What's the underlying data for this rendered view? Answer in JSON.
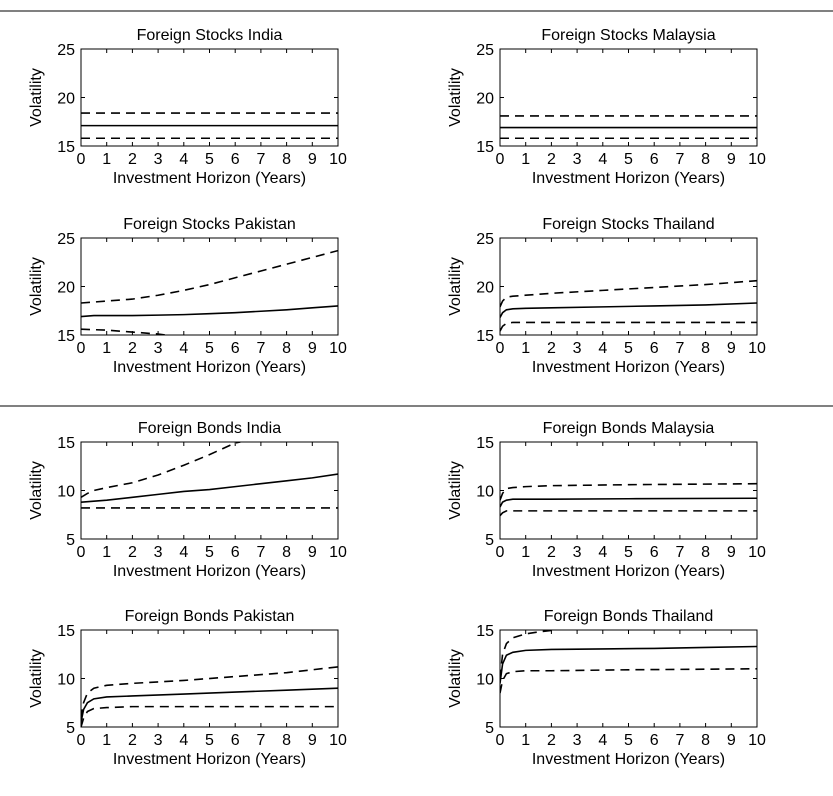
{
  "chart_data": [
    {
      "type": "line",
      "title": "Foreign Stocks India",
      "xlabel": "Investment Horizon (Years)",
      "ylabel": "Volatility",
      "xlim": [
        0,
        10
      ],
      "ylim": [
        15,
        25
      ],
      "xticks": [
        "0",
        "1",
        "2",
        "3",
        "4",
        "5",
        "6",
        "7",
        "8",
        "9",
        "10"
      ],
      "yticks": [
        "15",
        "20",
        "25"
      ],
      "series": [
        {
          "style": "solid",
          "x": [
            0,
            10
          ],
          "y": [
            17.1,
            17.1
          ]
        },
        {
          "style": "dashed",
          "x": [
            0,
            10
          ],
          "y": [
            18.4,
            18.4
          ]
        },
        {
          "style": "dashed",
          "x": [
            0,
            10
          ],
          "y": [
            15.8,
            15.8
          ]
        }
      ]
    },
    {
      "type": "line",
      "title": "Foreign Stocks Malaysia",
      "xlabel": "Investment Horizon (Years)",
      "ylabel": "Volatility",
      "xlim": [
        0,
        10
      ],
      "ylim": [
        15,
        25
      ],
      "xticks": [
        "0",
        "1",
        "2",
        "3",
        "4",
        "5",
        "6",
        "7",
        "8",
        "9",
        "10"
      ],
      "yticks": [
        "15",
        "20",
        "25"
      ],
      "series": [
        {
          "style": "solid",
          "x": [
            0,
            10
          ],
          "y": [
            16.9,
            16.9
          ]
        },
        {
          "style": "dashed",
          "x": [
            0,
            10
          ],
          "y": [
            18.1,
            18.1
          ]
        },
        {
          "style": "dashed",
          "x": [
            0,
            10
          ],
          "y": [
            15.8,
            15.8
          ]
        }
      ]
    },
    {
      "type": "line",
      "title": "Foreign Stocks Pakistan",
      "xlabel": "Investment Horizon (Years)",
      "ylabel": "Volatility",
      "xlim": [
        0,
        10
      ],
      "ylim": [
        15,
        25
      ],
      "xticks": [
        "0",
        "1",
        "2",
        "3",
        "4",
        "5",
        "6",
        "7",
        "8",
        "9",
        "10"
      ],
      "yticks": [
        "15",
        "20",
        "25"
      ],
      "series": [
        {
          "style": "solid",
          "x": [
            0,
            0.5,
            1,
            2,
            3,
            4,
            5,
            6,
            7,
            8,
            9,
            10
          ],
          "y": [
            16.9,
            17.0,
            17.0,
            17.0,
            17.05,
            17.1,
            17.2,
            17.3,
            17.45,
            17.6,
            17.8,
            18.0
          ]
        },
        {
          "style": "dashed",
          "x": [
            0,
            1,
            2,
            3,
            4,
            5,
            6,
            7,
            8,
            9,
            10
          ],
          "y": [
            18.3,
            18.5,
            18.7,
            19.1,
            19.6,
            20.2,
            20.9,
            21.6,
            22.3,
            23.0,
            23.7
          ]
        },
        {
          "style": "dashed",
          "x": [
            0,
            1,
            2,
            3,
            3.3
          ],
          "y": [
            15.6,
            15.5,
            15.3,
            15.1,
            15.0
          ]
        }
      ]
    },
    {
      "type": "line",
      "title": "Foreign Stocks Thailand",
      "xlabel": "Investment Horizon (Years)",
      "ylabel": "Volatility",
      "xlim": [
        0,
        10
      ],
      "ylim": [
        15,
        25
      ],
      "xticks": [
        "0",
        "1",
        "2",
        "3",
        "4",
        "5",
        "6",
        "7",
        "8",
        "9",
        "10"
      ],
      "yticks": [
        "15",
        "20",
        "25"
      ],
      "series": [
        {
          "style": "solid",
          "x": [
            0,
            0.1,
            0.25,
            0.5,
            1,
            2,
            4,
            6,
            8,
            10
          ],
          "y": [
            16.8,
            17.3,
            17.6,
            17.7,
            17.75,
            17.8,
            17.9,
            18.0,
            18.1,
            18.3
          ]
        },
        {
          "style": "dashed",
          "x": [
            0,
            0.1,
            0.25,
            0.5,
            1,
            2,
            4,
            6,
            8,
            10
          ],
          "y": [
            17.9,
            18.5,
            18.9,
            19.0,
            19.1,
            19.3,
            19.6,
            19.9,
            20.2,
            20.6
          ]
        },
        {
          "style": "dashed",
          "x": [
            0,
            0.1,
            0.25,
            0.5,
            1,
            2,
            4,
            6,
            8,
            10
          ],
          "y": [
            15.4,
            15.9,
            16.2,
            16.3,
            16.3,
            16.3,
            16.3,
            16.3,
            16.3,
            16.3
          ]
        }
      ]
    },
    {
      "type": "line",
      "title": "Foreign Bonds India",
      "xlabel": "Investment Horizon (Years)",
      "ylabel": "Volatility",
      "xlim": [
        0,
        10
      ],
      "ylim": [
        5,
        15
      ],
      "xticks": [
        "0",
        "1",
        "2",
        "3",
        "4",
        "5",
        "6",
        "7",
        "8",
        "9",
        "10"
      ],
      "yticks": [
        "5",
        "10",
        "15"
      ],
      "series": [
        {
          "style": "solid",
          "x": [
            0,
            1,
            2,
            3,
            4,
            5,
            6,
            7,
            8,
            9,
            10
          ],
          "y": [
            8.8,
            9.0,
            9.3,
            9.6,
            9.9,
            10.1,
            10.4,
            10.7,
            11.0,
            11.3,
            11.7
          ]
        },
        {
          "style": "dashed",
          "x": [
            0,
            0.25,
            0.5,
            1,
            2,
            3,
            4,
            5,
            6,
            6.2
          ],
          "y": [
            9.3,
            9.7,
            10.0,
            10.3,
            10.8,
            11.6,
            12.6,
            13.7,
            14.9,
            15.0
          ]
        },
        {
          "style": "dashed",
          "x": [
            0,
            10
          ],
          "y": [
            8.2,
            8.2
          ]
        }
      ]
    },
    {
      "type": "line",
      "title": "Foreign Bonds Malaysia",
      "xlabel": "Investment Horizon (Years)",
      "ylabel": "Volatility",
      "xlim": [
        0,
        10
      ],
      "ylim": [
        5,
        15
      ],
      "xticks": [
        "0",
        "1",
        "2",
        "3",
        "4",
        "5",
        "6",
        "7",
        "8",
        "9",
        "10"
      ],
      "yticks": [
        "5",
        "10",
        "15"
      ],
      "series": [
        {
          "style": "solid",
          "x": [
            0,
            0.1,
            0.25,
            0.5,
            1,
            2,
            5,
            10
          ],
          "y": [
            8.3,
            8.8,
            9.0,
            9.1,
            9.1,
            9.1,
            9.15,
            9.2
          ]
        },
        {
          "style": "dashed",
          "x": [
            0,
            0.1,
            0.25,
            0.5,
            1,
            2,
            5,
            10
          ],
          "y": [
            9.0,
            9.7,
            10.2,
            10.3,
            10.4,
            10.5,
            10.6,
            10.7
          ]
        },
        {
          "style": "dashed",
          "x": [
            0,
            0.1,
            0.25,
            0.5,
            1,
            2,
            5,
            10
          ],
          "y": [
            7.4,
            7.7,
            7.9,
            7.9,
            7.9,
            7.9,
            7.9,
            7.9
          ]
        }
      ]
    },
    {
      "type": "line",
      "title": "Foreign Bonds Pakistan",
      "xlabel": "Investment Horizon (Years)",
      "ylabel": "Volatility",
      "xlim": [
        0,
        10
      ],
      "ylim": [
        5,
        15
      ],
      "xticks": [
        "0",
        "1",
        "2",
        "3",
        "4",
        "5",
        "6",
        "7",
        "8",
        "9",
        "10"
      ],
      "yticks": [
        "5",
        "10",
        "15"
      ],
      "series": [
        {
          "style": "solid",
          "x": [
            0,
            0.1,
            0.25,
            0.5,
            1,
            2,
            4,
            6,
            8,
            10
          ],
          "y": [
            5.5,
            6.8,
            7.5,
            7.9,
            8.1,
            8.2,
            8.4,
            8.6,
            8.8,
            9.0
          ]
        },
        {
          "style": "dashed",
          "x": [
            0,
            0.1,
            0.25,
            0.5,
            1,
            2,
            4,
            6,
            8,
            10
          ],
          "y": [
            5.9,
            7.5,
            8.5,
            9.0,
            9.3,
            9.5,
            9.8,
            10.2,
            10.6,
            11.2
          ]
        },
        {
          "style": "dashed",
          "x": [
            0,
            0.1,
            0.25,
            0.5,
            1,
            2,
            4,
            6,
            8,
            10
          ],
          "y": [
            5.0,
            5.9,
            6.6,
            6.9,
            7.0,
            7.1,
            7.1,
            7.1,
            7.1,
            7.1
          ]
        }
      ]
    },
    {
      "type": "line",
      "title": "Foreign Bonds Thailand",
      "xlabel": "Investment Horizon (Years)",
      "ylabel": "Volatility",
      "xlim": [
        0,
        10
      ],
      "ylim": [
        5,
        15
      ],
      "xticks": [
        "0",
        "1",
        "2",
        "3",
        "4",
        "5",
        "6",
        "7",
        "8",
        "9",
        "10"
      ],
      "yticks": [
        "5",
        "10",
        "15"
      ],
      "series": [
        {
          "style": "solid",
          "x": [
            0,
            0.1,
            0.25,
            0.5,
            1,
            2,
            4,
            6,
            8,
            10
          ],
          "y": [
            9.5,
            11.5,
            12.4,
            12.7,
            12.9,
            13.0,
            13.05,
            13.1,
            13.2,
            13.3
          ]
        },
        {
          "style": "dashed",
          "x": [
            0,
            0.1,
            0.25,
            0.5,
            1,
            1.5,
            2,
            2.1
          ],
          "y": [
            10.0,
            12.5,
            13.6,
            14.2,
            14.6,
            14.8,
            14.95,
            15.0
          ]
        },
        {
          "style": "dashed",
          "x": [
            0,
            0.1,
            0.25,
            0.5,
            1,
            2,
            5,
            10
          ],
          "y": [
            8.5,
            9.8,
            10.5,
            10.7,
            10.8,
            10.8,
            10.9,
            11.0
          ]
        }
      ]
    }
  ]
}
